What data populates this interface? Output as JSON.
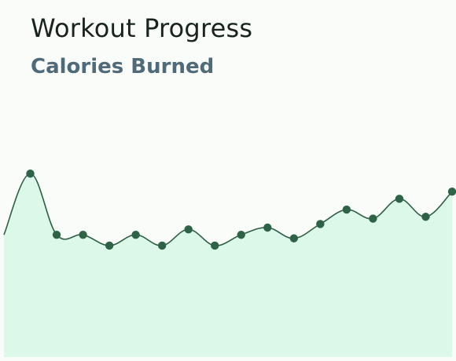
{
  "header": {
    "title": "Workout Progress",
    "subtitle": "Calories Burned"
  },
  "colors": {
    "background": "#f9fcf8",
    "line": "#2f5e45",
    "area_fill": "#dcf8e8",
    "point": "#2f6347",
    "title": "#18241d",
    "subtitle": "#4f6a78"
  },
  "chart_data": {
    "type": "area",
    "title": "Workout Progress",
    "subtitle": "Calories Burned",
    "xlabel": "",
    "ylabel": "",
    "grid": false,
    "legend": "none",
    "smooth": true,
    "ylim": [
      0,
      600
    ],
    "x": [
      1,
      2,
      3,
      4,
      5,
      6,
      7,
      8,
      9,
      10,
      11,
      12,
      13,
      14,
      15,
      16,
      17,
      18
    ],
    "values": [
      340,
      510,
      340,
      340,
      310,
      340,
      310,
      355,
      310,
      340,
      360,
      330,
      370,
      410,
      385,
      440,
      390,
      460
    ]
  }
}
